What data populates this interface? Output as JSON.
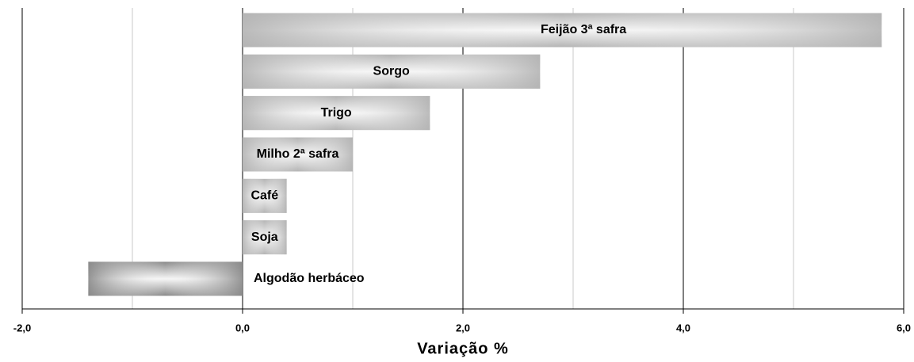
{
  "chart_data": {
    "type": "hbar",
    "x_label": "Variação %",
    "categories": [
      "Feijão 3ª safra",
      "Sorgo",
      "Trigo",
      "Milho 2ª safra",
      "Café",
      "Soja",
      "Algodão herbáceo"
    ],
    "values": [
      5.8,
      2.7,
      1.7,
      1.0,
      0.4,
      0.4,
      -1.4
    ],
    "color": "#b4b4b4",
    "negative_color": "#8a8a8a",
    "xlim": [
      -2,
      6
    ],
    "xticks": [
      {
        "value": -2,
        "label": "-2,0"
      },
      {
        "value": 0,
        "label": "0,0"
      },
      {
        "value": 2,
        "label": "2,0"
      },
      {
        "value": 4,
        "label": "4,0"
      },
      {
        "value": 6,
        "label": "6,0"
      }
    ],
    "minor_xticks": [
      -1,
      1,
      3,
      5
    ],
    "grid": true
  }
}
